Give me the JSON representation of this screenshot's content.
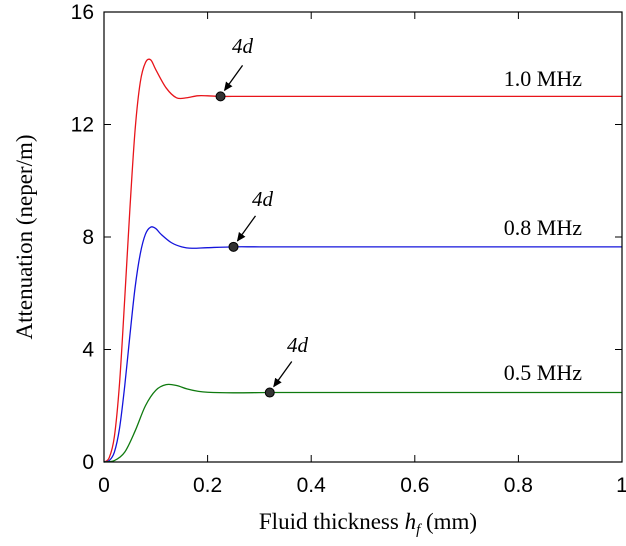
{
  "chart_data": {
    "type": "line",
    "xlabel_text": "Fluid thickness ",
    "xlabel_var": "h",
    "xlabel_sub": "f",
    "xlabel_unit": " (mm)",
    "ylabel": "Attenuation (neper/m)",
    "xlim": [
      0,
      1
    ],
    "ylim": [
      0,
      16
    ],
    "x_ticks": [
      0,
      0.2,
      0.4,
      0.6,
      0.8,
      1
    ],
    "x_tick_labels": [
      "0",
      "0.2",
      "0.4",
      "0.6",
      "0.8",
      "1"
    ],
    "y_ticks": [
      0,
      4,
      8,
      12,
      16
    ],
    "y_tick_labels": [
      "0",
      "4",
      "8",
      "12",
      "16"
    ],
    "grid": false,
    "series": [
      {
        "name": "1.0 MHz",
        "color": "#e8141a",
        "x": [
          0,
          0.01,
          0.02,
          0.03,
          0.04,
          0.05,
          0.06,
          0.07,
          0.08,
          0.09,
          0.1,
          0.12,
          0.14,
          0.16,
          0.18,
          0.2,
          0.225,
          0.26,
          0.3,
          0.4,
          0.6,
          0.8,
          1.0
        ],
        "y": [
          0,
          0.15,
          0.9,
          2.8,
          5.8,
          9.0,
          11.8,
          13.5,
          14.2,
          14.3,
          13.95,
          13.3,
          12.95,
          12.95,
          13.02,
          13.02,
          13.0,
          13.0,
          13.0,
          13.0,
          13.0,
          13.0,
          13.0
        ]
      },
      {
        "name": "0.8 MHz",
        "color": "#1414dc",
        "x": [
          0,
          0.01,
          0.02,
          0.03,
          0.04,
          0.05,
          0.06,
          0.07,
          0.08,
          0.09,
          0.1,
          0.11,
          0.13,
          0.15,
          0.17,
          0.2,
          0.25,
          0.3,
          0.4,
          0.6,
          0.8,
          1.0
        ],
        "y": [
          0,
          0.05,
          0.35,
          1.2,
          2.7,
          4.5,
          6.2,
          7.4,
          8.1,
          8.35,
          8.3,
          8.1,
          7.8,
          7.65,
          7.6,
          7.62,
          7.65,
          7.65,
          7.65,
          7.65,
          7.65,
          7.65
        ]
      },
      {
        "name": "0.5 MHz",
        "color": "#0f7a0f",
        "x": [
          0,
          0.02,
          0.04,
          0.06,
          0.08,
          0.1,
          0.12,
          0.14,
          0.16,
          0.18,
          0.2,
          0.25,
          0.32,
          0.4,
          0.6,
          0.8,
          1.0
        ],
        "y": [
          0,
          0.05,
          0.35,
          1.1,
          2.0,
          2.55,
          2.75,
          2.72,
          2.6,
          2.52,
          2.48,
          2.46,
          2.47,
          2.47,
          2.47,
          2.47,
          2.47
        ]
      }
    ],
    "markers": [
      {
        "series": "1.0 MHz",
        "x": 0.225,
        "y": 13.0,
        "label": "4d"
      },
      {
        "series": "0.8 MHz",
        "x": 0.25,
        "y": 7.65,
        "label": "4d"
      },
      {
        "series": "0.5 MHz",
        "x": 0.32,
        "y": 2.47,
        "label": "4d"
      }
    ],
    "series_label_positions": "right end, above each curve"
  },
  "series_labels": [
    "1.0 MHz",
    "0.8 MHz",
    "0.5 MHz"
  ],
  "annotation_labels": [
    "4d",
    "4d",
    "4d"
  ]
}
